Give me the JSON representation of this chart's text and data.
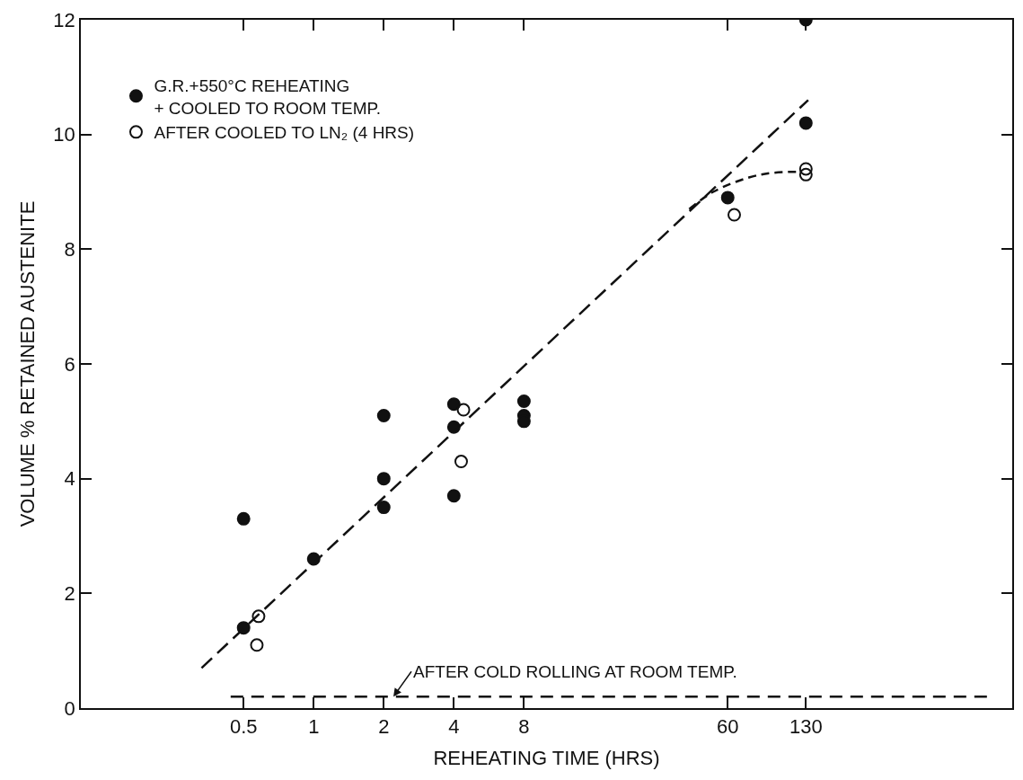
{
  "chart_data": {
    "type": "scatter",
    "xlabel": "REHEATING TIME (HRS)",
    "ylabel": "VOLUME % RETAINED AUSTENITE",
    "log": "x",
    "xlim": [
      0.1,
      1000
    ],
    "xticks": [
      0.5,
      1,
      2,
      4,
      8,
      60,
      130
    ],
    "ylim": [
      0,
      12
    ],
    "yticks": [
      0,
      2,
      4,
      6,
      8,
      10,
      12
    ],
    "legend": "top left",
    "series": [
      {
        "name": "G.R.+550°C REHEATING + COOLED TO ROOM TEMP.",
        "color": "#111111",
        "marker": "circle",
        "x": [
          0.5,
          0.5,
          1,
          2,
          2,
          2,
          4,
          4,
          4,
          8,
          8,
          8,
          60,
          130,
          130
        ],
        "values": [
          3.3,
          1.4,
          2.6,
          5.1,
          4.0,
          3.5,
          5.3,
          4.9,
          3.7,
          5.35,
          5.1,
          5.0,
          8.9,
          12.0,
          10.2
        ]
      },
      {
        "name": "AFTER COOLED TO LN₂ (4 HRS)",
        "color": "#111111",
        "marker": "circle-open",
        "x": [
          0.58,
          0.57,
          4.4,
          4.3,
          64,
          130,
          130
        ],
        "values": [
          1.6,
          1.1,
          5.2,
          4.3,
          8.6,
          9.4,
          9.3
        ]
      },
      {
        "type": "line",
        "color": "#111111",
        "line_style": "dashed",
        "x": [
          0.33,
          133
        ],
        "values": [
          0.7,
          10.6
        ]
      },
      {
        "type": "line",
        "color": "#111111",
        "line_style": "dashed",
        "x": [
          41,
          52,
          74,
          93,
          124
        ],
        "values": [
          8.7,
          9.0,
          9.25,
          9.33,
          9.35
        ]
      },
      {
        "type": "line",
        "color": "#111111",
        "line_style": "dashed",
        "x": [
          0.44,
          780
        ],
        "values": [
          0.2,
          0.2
        ]
      }
    ],
    "annotations": [
      {
        "text": "AFTER COLD ROLLING AT ROOM TEMP.",
        "x": 2.2,
        "y": 0.2
      }
    ]
  }
}
